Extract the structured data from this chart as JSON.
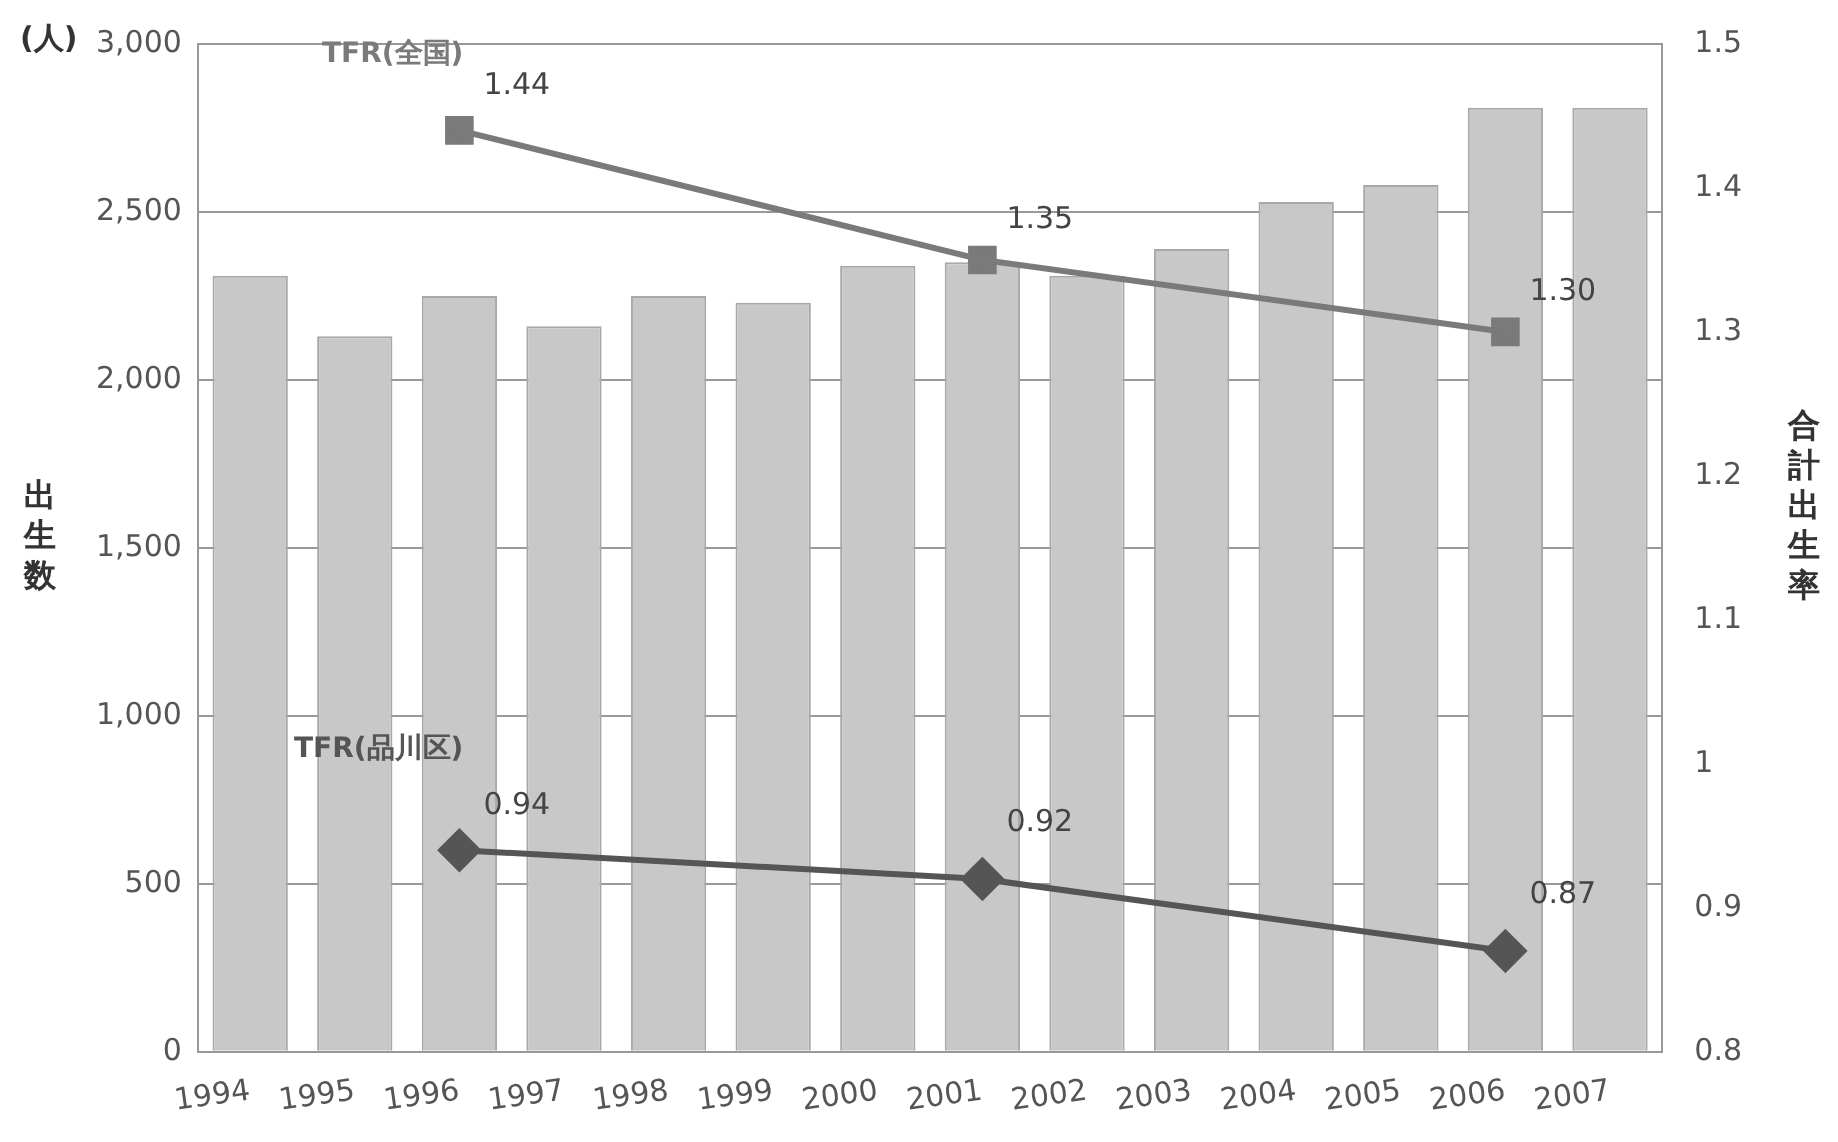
{
  "chart_data": {
    "type": "bar",
    "ylabel": "出生数",
    "y2label": "合計出生率",
    "annotations": [
      "(人)"
    ],
    "categories": [
      "1994",
      "1995",
      "1996",
      "1997",
      "1998",
      "1999",
      "2000",
      "2001",
      "2002",
      "2003",
      "2004",
      "2005",
      "2006",
      "2007"
    ],
    "series": [
      {
        "color": "#c8c8c8",
        "values": [
          2310,
          2130,
          2250,
          2160,
          2250,
          2230,
          2340,
          2350,
          2310,
          2390,
          2530,
          2580,
          2810,
          2810
        ]
      },
      {
        "type": "line",
        "name": "TFR(全国)",
        "color": "#7a7a7a",
        "marker": "square",
        "axis": "y2",
        "values": [
          null,
          null,
          1.44,
          null,
          null,
          null,
          null,
          1.35,
          null,
          null,
          null,
          null,
          1.3,
          null
        ],
        "value_labels": [
          null,
          null,
          "1.44",
          null,
          null,
          null,
          null,
          "1.35",
          null,
          null,
          null,
          null,
          "1.30",
          null
        ]
      },
      {
        "type": "line",
        "name": "TFR(品川区)",
        "color": "#555555",
        "marker": "diamond",
        "axis": "y2",
        "values": [
          null,
          null,
          0.94,
          null,
          null,
          null,
          null,
          0.92,
          null,
          null,
          null,
          null,
          0.87,
          null
        ],
        "value_labels": [
          null,
          null,
          "0.94",
          null,
          null,
          null,
          null,
          "0.92",
          null,
          null,
          null,
          null,
          "0.87",
          null
        ]
      }
    ],
    "ylim": [
      0,
      3000
    ],
    "yticks": [
      {
        "value": 0,
        "label": "0"
      },
      {
        "value": 500,
        "label": "500"
      },
      {
        "value": 1000,
        "label": "1,000"
      },
      {
        "value": 1500,
        "label": "1,500"
      },
      {
        "value": 2000,
        "label": "2,000"
      },
      {
        "value": 2500,
        "label": "2,500"
      },
      {
        "value": 3000,
        "label": "3,000"
      }
    ],
    "y2lim": [
      0.8,
      1.5
    ],
    "y2ticks": [
      0.8,
      0.9,
      1,
      1.1,
      1.2,
      1.3,
      1.4,
      1.5
    ],
    "grid": "y",
    "legend": false
  }
}
